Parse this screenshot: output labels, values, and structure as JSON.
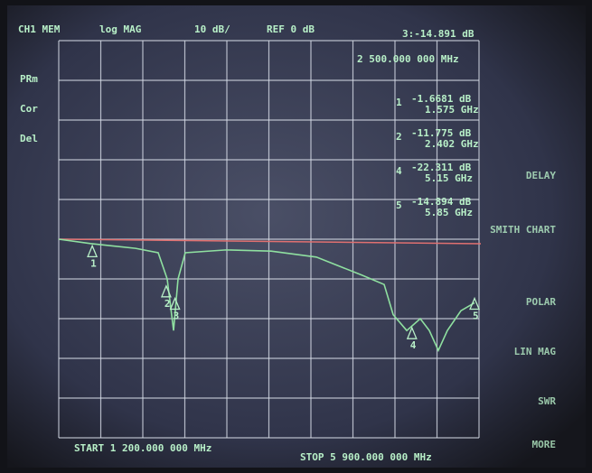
{
  "chart_data": {
    "type": "line",
    "header": [
      "CH1 MEM",
      "log MAG",
      "10 dB/",
      "REF 0 dB"
    ],
    "side_labels": [
      "PRm",
      "Cor",
      "Del"
    ],
    "softkeys": [
      "DELAY",
      "SMITH CHART",
      "POLAR",
      "LIN MAG",
      "SWR",
      "MORE"
    ],
    "start_label": "START 1 200.000 000 MHz",
    "stop_label": "STOP 5 900.000 000 MHz",
    "x": [
      1200,
      1554,
      2059,
      2312,
      2413,
      2484,
      2534,
      2615,
      3070,
      3575,
      4081,
      4586,
      4839,
      4940,
      5092,
      5243,
      5344,
      5445,
      5546,
      5698,
      5850
    ],
    "series": [
      {
        "color": "#8fe0a0",
        "values": [
          0,
          -1.1,
          -2.3,
          -3.4,
          -10,
          -23,
          -10,
          -3.4,
          -2.7,
          -3,
          -4.5,
          -9,
          -11.4,
          -19,
          -23,
          -20,
          -23,
          -28,
          -23,
          -18,
          -16
        ]
      }
    ],
    "xlim": [
      1200,
      5900
    ],
    "ylim": [
      -50,
      50
    ],
    "xticks": [
      1200,
      1670,
      2140,
      2610,
      3080,
      3550,
      4020,
      4490,
      4960,
      5430,
      5900
    ],
    "yticks": [
      -50,
      -40,
      -30,
      -20,
      -10,
      0,
      10,
      20,
      30,
      40,
      50
    ],
    "grid": true,
    "ref_line": {
      "value": 0,
      "color": "#e07070"
    },
    "markers": [
      {
        "label": "1",
        "x": 1575,
        "value": -1.6681,
        "value_label": "-1.6681 dB",
        "x_label": "1.575 GHz"
      },
      {
        "label": "2",
        "x": 2402,
        "value": -11.775,
        "value_label": "-11.775 dB",
        "x_label": "2.402 GHz"
      },
      {
        "label": "3",
        "x": 2500,
        "value": -14.891,
        "value_label": "3:-14.891 dB",
        "x_label": "2 500.000 000 MHz"
      },
      {
        "label": "4",
        "x": 5150,
        "value": -22.311,
        "value_label": "-22.311 dB",
        "x_label": "5.15 GHz"
      },
      {
        "label": "5",
        "x": 5850,
        "value": -14.894,
        "value_label": "-14.894 dB",
        "x_label": "5.85 GHz"
      }
    ]
  }
}
